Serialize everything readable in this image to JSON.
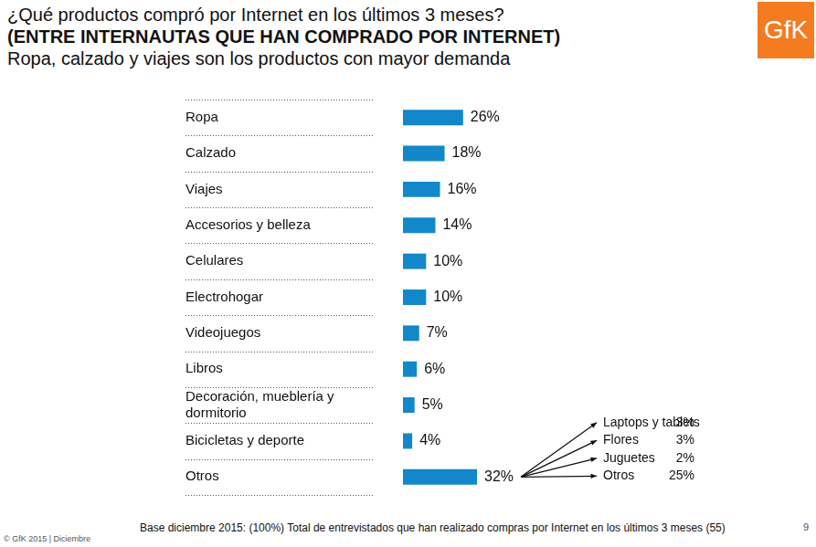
{
  "chart_data": {
    "type": "bar",
    "orientation": "horizontal",
    "title": "¿Qué productos compró por Internet en los últimos 3 meses?",
    "subtitle": [
      "(ENTRE INTERNAUTAS QUE HAN COMPRADO POR INTERNET)",
      "Ropa, calzado y viajes son los productos con mayor demanda"
    ],
    "categories": [
      "Ropa",
      "Calzado",
      "Viajes",
      "Accesorios y belleza",
      "Celulares",
      "Electrohogar",
      "Videojuegos",
      "Libros",
      "Decoración, mueblería y dormitorio",
      "Bicicletas y deporte",
      "Otros"
    ],
    "values": [
      26,
      18,
      16,
      14,
      10,
      10,
      7,
      6,
      5,
      4,
      32
    ],
    "value_labels": [
      "26%",
      "18%",
      "16%",
      "14%",
      "10%",
      "10%",
      "7%",
      "6%",
      "5%",
      "4%",
      "32%"
    ],
    "color": "#1287c9",
    "xlim": [
      0,
      32
    ],
    "grid": false,
    "tick_labels": "y",
    "data_labels": true,
    "annotation": {
      "category": "Otros",
      "items": [
        {
          "label": "Laptops y tablets",
          "share": "3%"
        },
        {
          "label": "Flores",
          "share": "3%"
        },
        {
          "label": "Juguetes",
          "share": "2%"
        },
        {
          "label": "Otros",
          "share": "25%"
        }
      ]
    }
  },
  "logo": "GfK",
  "footnote": "Base diciembre 2015: (100%) Total de entrevistados que han realizado compras por Internet en los últimos 3 meses  (55)",
  "copyright": "© GfK 2015 | Diciembre",
  "page_number": "9"
}
